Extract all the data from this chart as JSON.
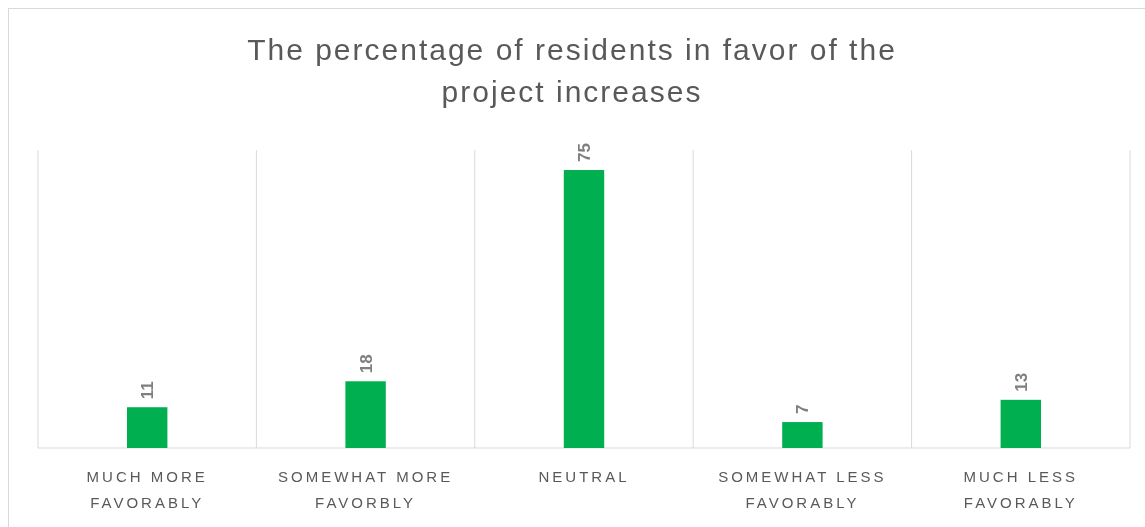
{
  "chart_data": {
    "type": "bar",
    "title": "The percentage of residents in favor of the project increases",
    "categories": [
      "MUCH MORE FAVORABLY",
      "SOMEWHAT MORE FAVORBLY",
      "NEUTRAL",
      "SOMEWHAT LESS FAVORABLY",
      "MUCH LESS FAVORABLY"
    ],
    "values": [
      11,
      18,
      75,
      7,
      13
    ],
    "color": "#00b050",
    "data_labels": true,
    "grid": "x"
  }
}
